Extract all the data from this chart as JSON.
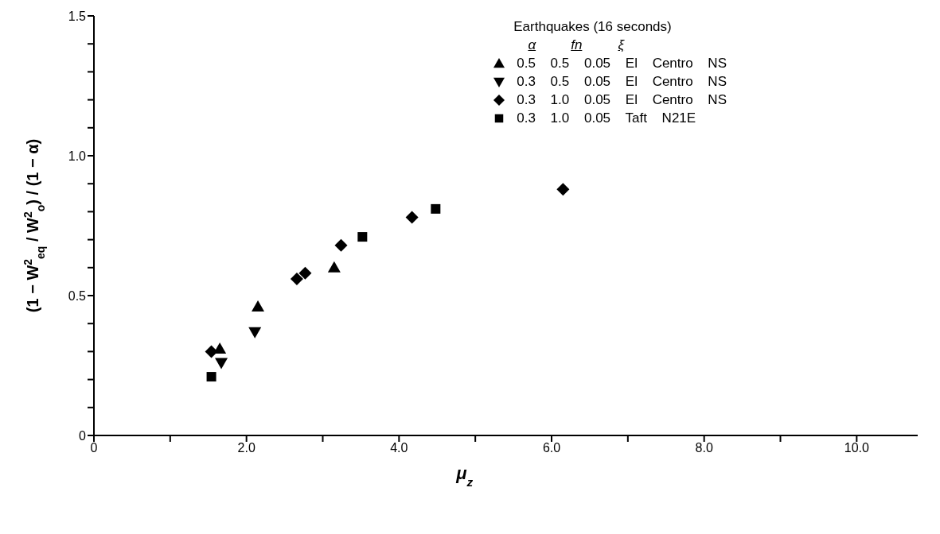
{
  "chart_data": {
    "type": "scatter",
    "xlabel": "μ$_{z}$",
    "ylabel": "(1 − W$^{2}$$_{eq}$ / W$^{2}$$_{o}$) / (1 − α)",
    "legend_title": "Earthquakes (16 seconds)",
    "annotations": [
      "α",
      "fn",
      "ξ"
    ],
    "legend": "top right",
    "grid": false,
    "xlim": [
      0,
      10.8
    ],
    "xticks": [
      0,
      {
        "value": 1,
        "label": null
      },
      {
        "value": 2,
        "label": "2.0"
      },
      {
        "value": 3,
        "label": null
      },
      {
        "value": 4,
        "label": "4.0"
      },
      {
        "value": 5,
        "label": null
      },
      {
        "value": 6,
        "label": "6.0"
      },
      {
        "value": 7,
        "label": null
      },
      {
        "value": 8,
        "label": "8.0"
      },
      {
        "value": 9,
        "label": null
      },
      {
        "value": 10,
        "label": "10.0"
      }
    ],
    "ylim": [
      0,
      1.5
    ],
    "yticks": [
      0,
      {
        "value": 0.1,
        "label": null
      },
      {
        "value": 0.2,
        "label": null
      },
      {
        "value": 0.3,
        "label": null
      },
      {
        "value": 0.4,
        "label": null
      },
      0.5,
      {
        "value": 0.6,
        "label": null
      },
      {
        "value": 0.7,
        "label": null
      },
      {
        "value": 0.8,
        "label": null
      },
      {
        "value": 0.9,
        "label": null
      },
      {
        "value": 1,
        "label": "1.0"
      },
      {
        "value": 1.1,
        "label": null
      },
      {
        "value": 1.2,
        "label": null
      },
      {
        "value": 1.3,
        "label": null
      },
      {
        "value": 1.4,
        "label": null
      },
      1.5
    ],
    "series": [
      {
        "name": "0.5 0.5 0.05 El Centro NS",
        "color": "#000000",
        "marker": "triangle",
        "x": [
          1.65,
          2.15,
          3.15
        ],
        "values": [
          0.31,
          0.46,
          0.6
        ]
      },
      {
        "name": "0.3 0.5 0.05 El Centro NS",
        "color": "#000000",
        "marker": "triangle-down",
        "x": [
          1.67,
          2.11
        ],
        "values": [
          0.26,
          0.37
        ]
      },
      {
        "name": "0.3 1.0 0.05 El Centro NS",
        "color": "#000000",
        "marker": "diamond",
        "x": [
          1.54,
          2.66,
          2.77,
          3.24,
          4.17,
          6.15
        ],
        "values": [
          0.3,
          0.56,
          0.58,
          0.68,
          0.78,
          0.88
        ]
      },
      {
        "name": "0.3 1.0 0.05 Taft N21E",
        "color": "#000000",
        "marker": "square",
        "x": [
          1.54,
          3.52,
          4.48
        ],
        "values": [
          0.21,
          0.71,
          0.81
        ]
      }
    ]
  }
}
